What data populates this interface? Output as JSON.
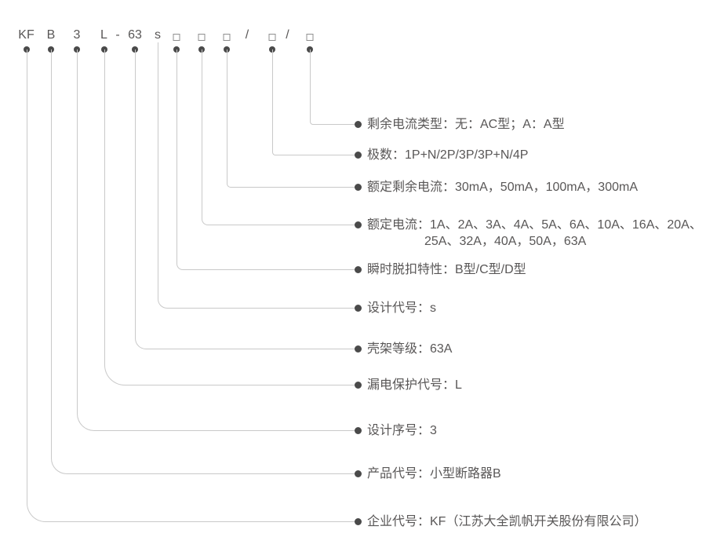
{
  "diagram": {
    "code_symbols": [
      {
        "kind": "text",
        "text": "KF"
      },
      {
        "kind": "text",
        "text": "B"
      },
      {
        "kind": "text",
        "text": "3"
      },
      {
        "kind": "text",
        "text": "L"
      },
      {
        "kind": "separator",
        "text": "-"
      },
      {
        "kind": "text",
        "text": "63"
      },
      {
        "kind": "text",
        "text": "s"
      },
      {
        "kind": "box"
      },
      {
        "kind": "box"
      },
      {
        "kind": "box"
      },
      {
        "kind": "separator",
        "text": "/"
      },
      {
        "kind": "box"
      },
      {
        "kind": "separator",
        "text": "/"
      },
      {
        "kind": "box"
      }
    ],
    "labels": [
      {
        "symbol_index": 13,
        "text_lines": [
          "剩余电流类型：无：AC型；A：A型"
        ]
      },
      {
        "symbol_index": 11,
        "text_lines": [
          "极数：1P+N/2P/3P/3P+N/4P"
        ]
      },
      {
        "symbol_index": 9,
        "text_lines": [
          "额定剩余电流：30mA，50mA，100mA，300mA"
        ]
      },
      {
        "symbol_index": 8,
        "text_lines": [
          "额定电流：1A、2A、3A、4A、5A、6A、10A、16A、20A、",
          "25A、32A，40A，50A，63A"
        ]
      },
      {
        "symbol_index": 7,
        "text_lines": [
          "瞬时脱扣特性：B型/C型/D型"
        ]
      },
      {
        "symbol_index": 6,
        "text_lines": [
          "设计代号：s"
        ]
      },
      {
        "symbol_index": 5,
        "text_lines": [
          "壳架等级：63A"
        ]
      },
      {
        "symbol_index": 3,
        "text_lines": [
          "漏电保护代号：L"
        ]
      },
      {
        "symbol_index": 2,
        "text_lines": [
          "设计序号：3"
        ]
      },
      {
        "symbol_index": 1,
        "text_lines": [
          "产品代号：小型断路器B"
        ]
      },
      {
        "symbol_index": 0,
        "text_lines": [
          "企业代号：KF（江苏大全凯帆开关股份有限公司）"
        ]
      }
    ]
  },
  "colors": {
    "text": "#595757",
    "connector_line": "#c9c9c9",
    "dot": "#4a4a4a",
    "box_border": "#8f8f8f",
    "background": "#ffffff"
  }
}
